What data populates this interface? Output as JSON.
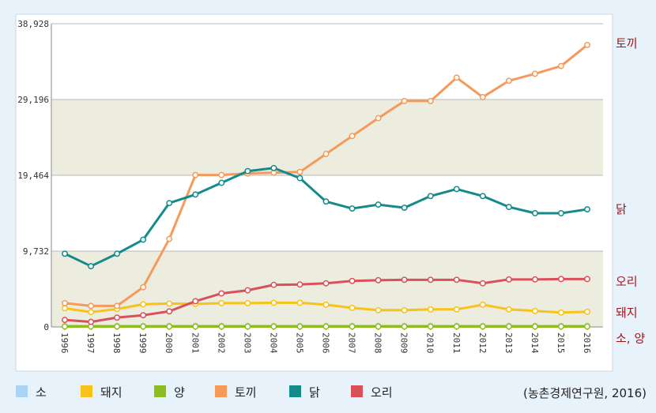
{
  "chart_data": {
    "type": "line",
    "title": "",
    "xlabel": "",
    "ylabel": "",
    "ylim": [
      0,
      38928
    ],
    "yticks": [
      "0",
      "9,732",
      "19,464",
      "29,196",
      "38,928"
    ],
    "ytick_values": [
      0,
      9732,
      19464,
      29196,
      38928
    ],
    "x": [
      "1996",
      "1997",
      "1998",
      "1999",
      "2000",
      "2001",
      "2002",
      "2003",
      "2004",
      "2005",
      "2006",
      "2007",
      "2008",
      "2009",
      "2010",
      "2011",
      "2012",
      "2013",
      "2014",
      "2015",
      "2016"
    ],
    "grid": true,
    "legend_position": "bottom",
    "series": [
      {
        "name": "소",
        "color": "#a9d4f5",
        "values": [
          150,
          150,
          150,
          150,
          150,
          150,
          150,
          150,
          150,
          150,
          150,
          150,
          150,
          150,
          150,
          150,
          150,
          150,
          150,
          150,
          150
        ]
      },
      {
        "name": "돼지",
        "color": "#f7c21a",
        "values": [
          2400,
          1900,
          2300,
          2900,
          3000,
          2950,
          3050,
          3050,
          3100,
          3100,
          2850,
          2450,
          2150,
          2150,
          2250,
          2250,
          2850,
          2250,
          2050,
          1850,
          1950
        ]
      },
      {
        "name": "양",
        "color": "#8cbd1e",
        "values": [
          50,
          50,
          50,
          50,
          50,
          50,
          50,
          50,
          50,
          50,
          50,
          50,
          50,
          50,
          50,
          50,
          50,
          50,
          50,
          50,
          50
        ]
      },
      {
        "name": "토끼",
        "color": "#f59a5a",
        "values": [
          3050,
          2700,
          2700,
          5100,
          11300,
          19500,
          19500,
          19700,
          19800,
          19900,
          22200,
          24500,
          26800,
          29000,
          29000,
          32000,
          29500,
          31600,
          32500,
          33500,
          36200
        ]
      },
      {
        "name": "닭",
        "color": "#148a8a",
        "values": [
          9400,
          7800,
          9400,
          11200,
          15900,
          17000,
          18500,
          20000,
          20400,
          19100,
          16100,
          15200,
          15700,
          15300,
          16800,
          17700,
          16800,
          15400,
          14600,
          14600,
          15100
        ]
      },
      {
        "name": "오리",
        "color": "#d9505a",
        "values": [
          900,
          650,
          1200,
          1500,
          2000,
          3300,
          4300,
          4700,
          5400,
          5450,
          5600,
          5900,
          6000,
          6050,
          6050,
          6050,
          5600,
          6100,
          6100,
          6150,
          6150
        ]
      }
    ]
  },
  "end_labels": [
    {
      "text": "토끼",
      "series": "토끼"
    },
    {
      "text": "닭",
      "series": "닭"
    },
    {
      "text": "오리",
      "series": "오리"
    },
    {
      "text": "돼지",
      "series": "돼지"
    },
    {
      "text": "소, 양",
      "series": "소"
    }
  ],
  "legend": [
    {
      "name": "소",
      "color": "#a9d4f5"
    },
    {
      "name": "돼지",
      "color": "#f7c21a"
    },
    {
      "name": "양",
      "color": "#8cbd1e"
    },
    {
      "name": "토끼",
      "color": "#f59a5a"
    },
    {
      "name": "닭",
      "color": "#148a8a"
    },
    {
      "name": "오리",
      "color": "#d9505a"
    }
  ],
  "source": "(농촌경제연구원, 2016)"
}
